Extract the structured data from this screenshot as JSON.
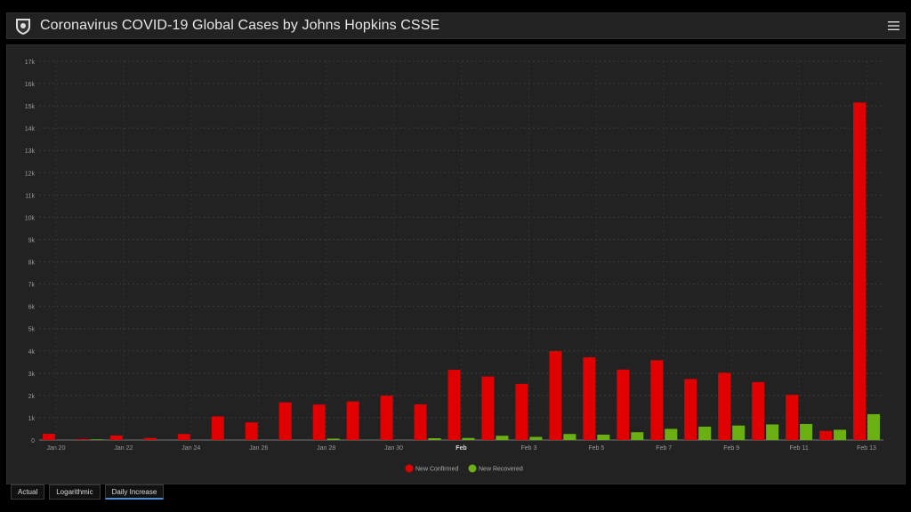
{
  "header": {
    "title": "Coronavirus COVID-19 Global Cases by Johns Hopkins CSSE"
  },
  "icons": {
    "logo": "shield-icon",
    "menu": "hamburger-menu-icon"
  },
  "colors": {
    "confirmed": "#e00000",
    "recovered": "#6ab012"
  },
  "tabs": [
    {
      "label": "Actual",
      "active": false
    },
    {
      "label": "Logarithmic",
      "active": false
    },
    {
      "label": "Daily Increase",
      "active": true
    }
  ],
  "chart_data": {
    "type": "bar",
    "title": "",
    "xlabel": "",
    "ylabel": "",
    "ylim": [
      0,
      17000
    ],
    "y_ticks": [
      "0",
      "1k",
      "2k",
      "3k",
      "4k",
      "5k",
      "6k",
      "7k",
      "8k",
      "9k",
      "10k",
      "11k",
      "12k",
      "13k",
      "14k",
      "15k",
      "16k",
      "17k"
    ],
    "grid": true,
    "legend": "bottom-center",
    "categories": [
      "Jan 20",
      "Jan 21",
      "Jan 22",
      "Jan 23",
      "Jan 24",
      "Jan 25",
      "Jan 26",
      "Jan 27",
      "Jan 28",
      "Jan 29",
      "Jan 30",
      "Jan 31",
      "Feb 1",
      "Feb 2",
      "Feb 3",
      "Feb 4",
      "Feb 5",
      "Feb 6",
      "Feb 7",
      "Feb 8",
      "Feb 9",
      "Feb 10",
      "Feb 11",
      "Feb 12",
      "Feb 13"
    ],
    "x_tick_labels": [
      {
        "index": 0,
        "label": "Jan 20",
        "bold": false
      },
      {
        "index": 2,
        "label": "Jan 22",
        "bold": false
      },
      {
        "index": 4,
        "label": "Jan 24",
        "bold": false
      },
      {
        "index": 6,
        "label": "Jan 26",
        "bold": false
      },
      {
        "index": 8,
        "label": "Jan 28",
        "bold": false
      },
      {
        "index": 10,
        "label": "Jan 30",
        "bold": false
      },
      {
        "index": 12,
        "label": "Feb",
        "bold": true
      },
      {
        "index": 14,
        "label": "Feb 3",
        "bold": false
      },
      {
        "index": 16,
        "label": "Feb 5",
        "bold": false
      },
      {
        "index": 18,
        "label": "Feb 7",
        "bold": false
      },
      {
        "index": 20,
        "label": "Feb 9",
        "bold": false
      },
      {
        "index": 22,
        "label": "Feb 11",
        "bold": false
      },
      {
        "index": 24,
        "label": "Feb 13",
        "bold": false
      }
    ],
    "series": [
      {
        "name": "New Confirmed",
        "values": [
          280,
          40,
          200,
          90,
          270,
          1060,
          790,
          1690,
          1590,
          1730,
          1990,
          1600,
          3150,
          2850,
          2520,
          3990,
          3710,
          3160,
          3580,
          2740,
          3020,
          2600,
          2030,
          410,
          15150
        ]
      },
      {
        "name": "New Recovered",
        "values": [
          0,
          30,
          0,
          0,
          0,
          0,
          0,
          0,
          60,
          0,
          0,
          80,
          90,
          190,
          140,
          270,
          240,
          350,
          500,
          600,
          650,
          700,
          720,
          460,
          1160
        ]
      }
    ]
  }
}
